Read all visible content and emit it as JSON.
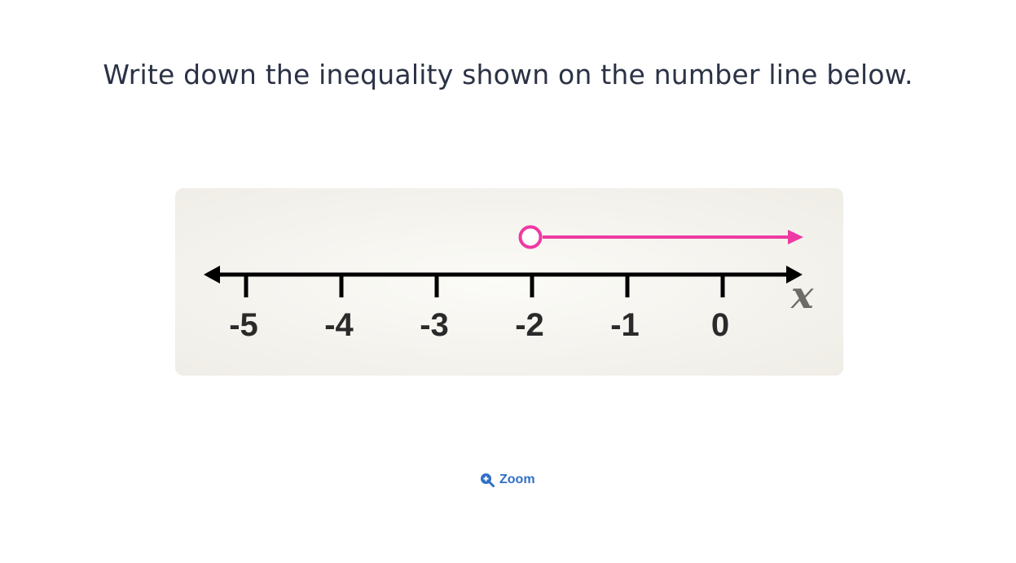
{
  "question": {
    "text": "Write down the inequality shown on the number line below."
  },
  "number_line": {
    "tick_labels": [
      "-5",
      "-4",
      "-3",
      "-2",
      "-1",
      "0"
    ],
    "tick_values": [
      -5,
      -4,
      -3,
      -2,
      -1,
      0
    ],
    "variable": "x",
    "axis_color": "#000000",
    "ray": {
      "start_value": -2,
      "endpoint": "open-circle",
      "direction": "right",
      "color": "#ee3aa2"
    }
  },
  "zoom": {
    "label": "Zoom",
    "icon": "zoom-in-icon",
    "color": "#2f6fc6"
  }
}
